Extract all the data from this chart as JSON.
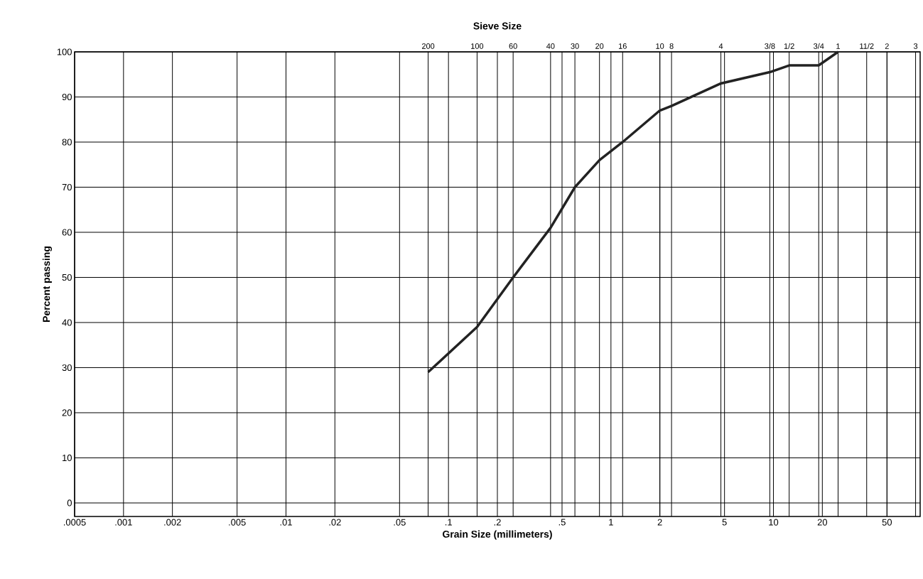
{
  "chart_data": {
    "type": "line",
    "xlabel": "Grain Size (millimeters)",
    "ylabel": "Percent passing",
    "x2label": "Sieve Size",
    "log": "x",
    "grid": true,
    "marker": "none",
    "line_style": "solid",
    "xlim": [
      0.0005,
      80
    ],
    "ylim": [
      -3,
      100
    ],
    "xticks": [
      {
        "value": 0.0005,
        "label": ".0005"
      },
      {
        "value": 0.001,
        "label": ".001"
      },
      {
        "value": 0.002,
        "label": ".002"
      },
      {
        "value": 0.005,
        "label": ".005"
      },
      {
        "value": 0.01,
        "label": ".01"
      },
      {
        "value": 0.02,
        "label": ".02"
      },
      {
        "value": 0.05,
        "label": ".05"
      },
      {
        "value": 0.1,
        "label": ".1"
      },
      {
        "value": 0.2,
        "label": ".2"
      },
      {
        "value": 0.5,
        "label": ".5"
      },
      1,
      2,
      5,
      10,
      20,
      50
    ],
    "yticks": [
      0,
      10,
      20,
      30,
      40,
      50,
      60,
      70,
      80,
      90,
      100
    ],
    "annotations": [
      "200",
      "100",
      "60",
      "40",
      "30",
      "20",
      "16",
      "10",
      "8",
      "4",
      "3/8",
      "1/2",
      "3/4",
      "1",
      "11/2",
      "2",
      "3"
    ],
    "ref_lines": [
      {
        "axis": "x",
        "value": 0.075
      },
      {
        "axis": "x",
        "value": 0.15
      },
      {
        "axis": "x",
        "value": 0.25
      },
      {
        "axis": "x",
        "value": 0.425
      },
      {
        "axis": "x",
        "value": 0.6
      },
      {
        "axis": "x",
        "value": 0.85
      },
      {
        "axis": "x",
        "value": 1.18
      },
      {
        "axis": "x",
        "value": 2.0
      },
      {
        "axis": "x",
        "value": 2.36
      },
      {
        "axis": "x",
        "value": 4.75
      },
      {
        "axis": "x",
        "value": 9.5
      },
      {
        "axis": "x",
        "value": 12.5
      },
      {
        "axis": "x",
        "value": 19
      },
      {
        "axis": "x",
        "value": 25
      },
      {
        "axis": "x",
        "value": 37.5
      },
      {
        "axis": "x",
        "value": 50
      },
      {
        "axis": "x",
        "value": 75
      }
    ],
    "x": [
      0.075,
      0.15,
      0.25,
      0.425,
      0.6,
      0.85,
      1.18,
      2.0,
      2.36,
      4.75,
      9.5,
      12.5,
      19,
      25
    ],
    "series": [
      {
        "color": "#222222",
        "values": [
          29,
          39,
          50,
          61,
          70,
          76,
          80,
          87,
          88,
          93,
          95.5,
          97,
          97,
          100
        ]
      }
    ]
  }
}
